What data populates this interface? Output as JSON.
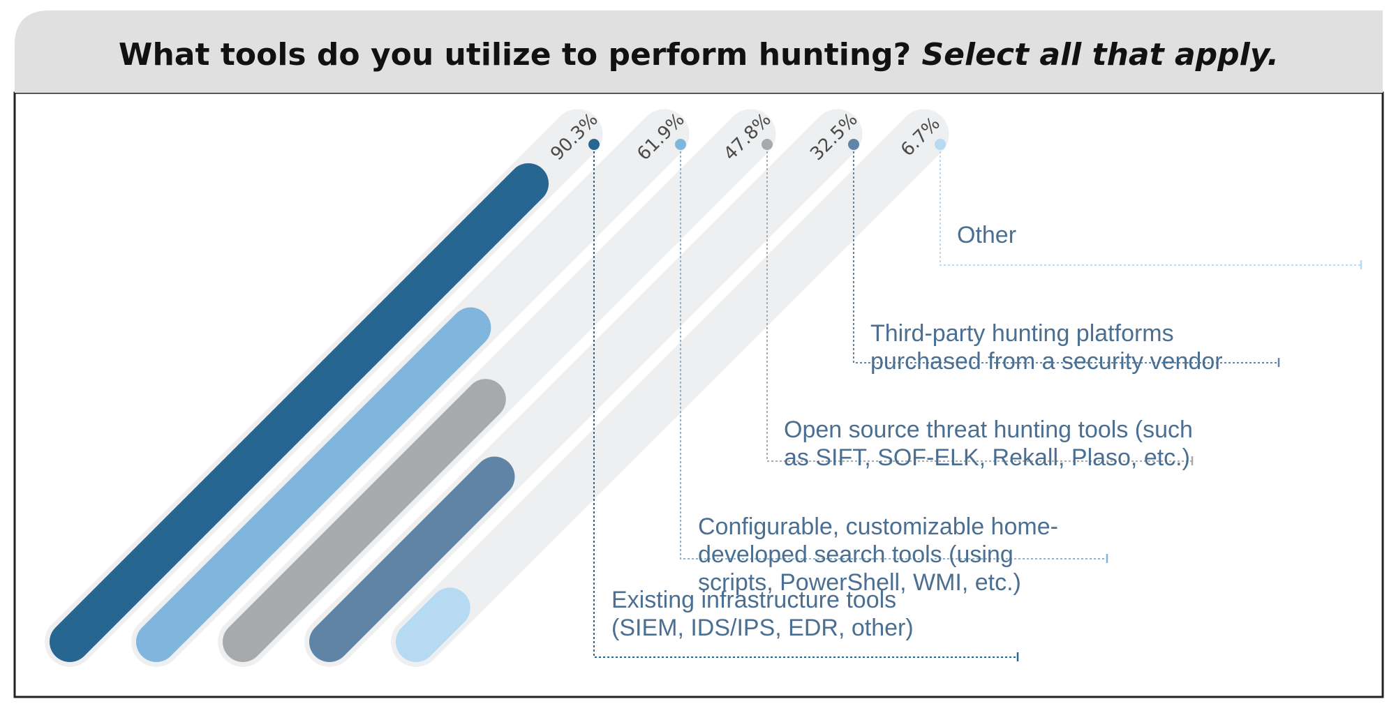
{
  "title": {
    "main": "What tools do you utilize to perform hunting?",
    "emphasis": "Select all that apply."
  },
  "colors": {
    "header_bg": "#e0e0e0",
    "track": "#eeeff0",
    "label_text": "#4a6f92"
  },
  "chart_data": {
    "type": "bar",
    "orientation": "diagonal",
    "unit": "%",
    "ylim": [
      0,
      100
    ],
    "categories": [
      "Existing infrastructure tools (SIEM, IDS/IPS, EDR, other)",
      "Configurable, customizable home-developed search tools (using scripts, PowerShell, WMI, etc.)",
      "Open source threat hunting tools (such as SIFT, SOF-ELK, Rekall, Plaso, etc.)",
      "Third-party hunting platforms purchased from a security vendor",
      "Other"
    ],
    "values": [
      90.3,
      61.9,
      47.8,
      32.5,
      6.7
    ],
    "value_labels": [
      "90.3%",
      "61.9%",
      "47.8%",
      "32.5%",
      "6.7%"
    ],
    "label_lines": [
      [
        "Existing infrastructure tools",
        "(SIEM, IDS/IPS, EDR, other)"
      ],
      [
        "Configurable, customizable home-",
        "developed search tools (using",
        "scripts, PowerShell, WMI, etc.)"
      ],
      [
        "Open source threat hunting tools (such",
        "as SIFT, SOF-ELK, Rekall, Plaso, etc.)"
      ],
      [
        "Third-party hunting platforms",
        "purchased from a security vendor"
      ],
      [
        "Other"
      ]
    ],
    "colors": [
      "#266690",
      "#80b5dd",
      "#a8a9ab",
      "#5f84a5",
      "#b5daf2"
    ]
  }
}
